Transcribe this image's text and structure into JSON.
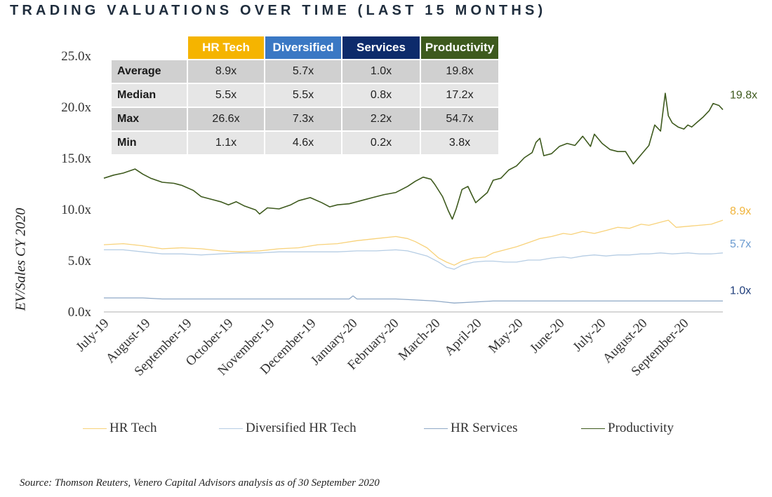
{
  "title": "TRADING VALUATIONS OVER TIME (LAST 15 MONTHS)",
  "source": "Source: Thomson Reuters, Venero Capital Advisors analysis as of 30 September 2020",
  "table": {
    "headers": [
      {
        "label": "HR Tech",
        "color": "#f5b400"
      },
      {
        "label": "Diversified",
        "color": "#3a78c4"
      },
      {
        "label": "Services",
        "color": "#0d2b6b"
      },
      {
        "label": "Productivity",
        "color": "#3e5a1e"
      }
    ],
    "rows": [
      {
        "label": "Average",
        "values": [
          "8.9x",
          "5.7x",
          "1.0x",
          "19.8x"
        ]
      },
      {
        "label": "Median",
        "values": [
          "5.5x",
          "5.5x",
          "0.8x",
          "17.2x"
        ]
      },
      {
        "label": "Max",
        "values": [
          "26.6x",
          "7.3x",
          "2.2x",
          "54.7x"
        ]
      },
      {
        "label": "Min",
        "values": [
          "1.1x",
          "4.6x",
          "0.2x",
          "3.8x"
        ]
      }
    ]
  },
  "legend": [
    {
      "label": "HR Tech",
      "color": "#f8d27a"
    },
    {
      "label": "Diversified HR Tech",
      "color": "#b6cde4"
    },
    {
      "label": "HR Services",
      "color": "#8fa9c7"
    },
    {
      "label": "Productivity",
      "color": "#3e5a1e"
    }
  ],
  "chart_data": {
    "type": "line",
    "title": "TRADING VALUATIONS OVER TIME (LAST 15 MONTHS)",
    "xlabel": "",
    "ylabel": "EV/Sales CY 2020",
    "ylim": [
      0,
      25
    ],
    "yticks": [
      "0.0x",
      "5.0x",
      "10.0x",
      "15.0x",
      "20.0x",
      "25.0x"
    ],
    "ytick_values": [
      0,
      5,
      10,
      15,
      20,
      25
    ],
    "x_start": 0,
    "x_end": 14,
    "categories": [
      "July-19",
      "August-19",
      "September-19",
      "October-19",
      "November-19",
      "December-19",
      "January-20",
      "February-20",
      "March-20",
      "April-20",
      "May-20",
      "June-20",
      "July-20",
      "August-20",
      "September-20"
    ],
    "series": [
      {
        "name": "Productivity",
        "color": "#3e5a1e",
        "end_label": "19.8x",
        "points": [
          [
            0,
            13.0
          ],
          [
            0.25,
            13.3
          ],
          [
            0.5,
            13.5
          ],
          [
            0.8,
            13.9
          ],
          [
            1.0,
            13.4
          ],
          [
            1.2,
            13.0
          ],
          [
            1.5,
            12.6
          ],
          [
            1.8,
            12.5
          ],
          [
            2.0,
            12.3
          ],
          [
            2.3,
            11.8
          ],
          [
            2.5,
            11.2
          ],
          [
            2.8,
            10.9
          ],
          [
            3.0,
            10.7
          ],
          [
            3.2,
            10.4
          ],
          [
            3.4,
            10.7
          ],
          [
            3.6,
            10.3
          ],
          [
            3.9,
            9.9
          ],
          [
            4.0,
            9.5
          ],
          [
            4.2,
            10.1
          ],
          [
            4.5,
            10.0
          ],
          [
            4.8,
            10.4
          ],
          [
            5.0,
            10.8
          ],
          [
            5.3,
            11.1
          ],
          [
            5.6,
            10.6
          ],
          [
            5.8,
            10.2
          ],
          [
            6.0,
            10.4
          ],
          [
            6.3,
            10.5
          ],
          [
            6.6,
            10.8
          ],
          [
            6.9,
            11.1
          ],
          [
            7.2,
            11.4
          ],
          [
            7.5,
            11.6
          ],
          [
            7.8,
            12.2
          ],
          [
            8.0,
            12.7
          ],
          [
            8.2,
            13.1
          ],
          [
            8.4,
            12.9
          ],
          [
            8.5,
            12.4
          ],
          [
            8.7,
            11.2
          ],
          [
            8.85,
            9.8
          ],
          [
            8.95,
            9.0
          ],
          [
            9.05,
            10.0
          ],
          [
            9.2,
            11.9
          ],
          [
            9.35,
            12.2
          ],
          [
            9.45,
            11.4
          ],
          [
            9.55,
            10.6
          ],
          [
            9.7,
            11.1
          ],
          [
            9.85,
            11.6
          ],
          [
            10.0,
            12.8
          ],
          [
            10.2,
            13.0
          ],
          [
            10.4,
            13.8
          ],
          [
            10.6,
            14.2
          ],
          [
            10.8,
            15.0
          ],
          [
            11.0,
            15.5
          ],
          [
            11.1,
            16.5
          ],
          [
            11.2,
            16.9
          ],
          [
            11.3,
            15.2
          ],
          [
            11.5,
            15.4
          ],
          [
            11.7,
            16.1
          ],
          [
            11.9,
            16.4
          ],
          [
            12.1,
            16.2
          ],
          [
            12.3,
            17.1
          ],
          [
            12.5,
            16.1
          ],
          [
            12.6,
            17.3
          ],
          [
            12.8,
            16.4
          ],
          [
            13.0,
            15.8
          ],
          [
            13.2,
            15.6
          ],
          [
            13.4,
            15.6
          ],
          [
            13.6,
            14.4
          ],
          [
            13.8,
            15.3
          ],
          [
            14.0,
            16.2
          ],
          [
            14.15,
            18.2
          ],
          [
            14.3,
            17.6
          ],
          [
            14.42,
            21.3
          ],
          [
            14.5,
            19.1
          ],
          [
            14.6,
            18.4
          ],
          [
            14.75,
            18.0
          ],
          [
            14.9,
            17.8
          ],
          [
            15.0,
            18.2
          ],
          [
            15.1,
            18.0
          ],
          [
            15.25,
            18.5
          ],
          [
            15.4,
            19.0
          ],
          [
            15.55,
            19.6
          ],
          [
            15.65,
            20.3
          ],
          [
            15.8,
            20.1
          ],
          [
            15.9,
            19.7
          ]
        ]
      },
      {
        "name": "HR Tech",
        "color": "#f8d27a",
        "end_label": "8.9x",
        "points": [
          [
            0,
            6.5
          ],
          [
            0.5,
            6.6
          ],
          [
            1.0,
            6.4
          ],
          [
            1.5,
            6.1
          ],
          [
            2.0,
            6.2
          ],
          [
            2.5,
            6.1
          ],
          [
            3.0,
            5.9
          ],
          [
            3.5,
            5.8
          ],
          [
            4.0,
            5.9
          ],
          [
            4.5,
            6.1
          ],
          [
            5.0,
            6.2
          ],
          [
            5.5,
            6.5
          ],
          [
            6.0,
            6.6
          ],
          [
            6.5,
            6.9
          ],
          [
            7.0,
            7.1
          ],
          [
            7.5,
            7.3
          ],
          [
            7.8,
            7.1
          ],
          [
            8.0,
            6.8
          ],
          [
            8.3,
            6.2
          ],
          [
            8.6,
            5.2
          ],
          [
            8.8,
            4.8
          ],
          [
            9.0,
            4.5
          ],
          [
            9.2,
            4.9
          ],
          [
            9.5,
            5.2
          ],
          [
            9.8,
            5.3
          ],
          [
            10.0,
            5.7
          ],
          [
            10.3,
            6.0
          ],
          [
            10.6,
            6.3
          ],
          [
            10.9,
            6.7
          ],
          [
            11.2,
            7.1
          ],
          [
            11.5,
            7.3
          ],
          [
            11.8,
            7.6
          ],
          [
            12.0,
            7.5
          ],
          [
            12.3,
            7.8
          ],
          [
            12.6,
            7.6
          ],
          [
            12.9,
            7.9
          ],
          [
            13.2,
            8.2
          ],
          [
            13.5,
            8.1
          ],
          [
            13.8,
            8.5
          ],
          [
            14.0,
            8.4
          ],
          [
            14.3,
            8.7
          ],
          [
            14.5,
            8.9
          ],
          [
            14.7,
            8.2
          ],
          [
            15.0,
            8.3
          ],
          [
            15.3,
            8.4
          ],
          [
            15.6,
            8.5
          ],
          [
            15.9,
            8.9
          ]
        ]
      },
      {
        "name": "Diversified HR Tech",
        "color": "#b6cde4",
        "end_label": "5.7x",
        "points": [
          [
            0,
            6.0
          ],
          [
            0.5,
            6.0
          ],
          [
            1.0,
            5.8
          ],
          [
            1.5,
            5.6
          ],
          [
            2.0,
            5.6
          ],
          [
            2.5,
            5.5
          ],
          [
            3.0,
            5.6
          ],
          [
            3.5,
            5.7
          ],
          [
            4.0,
            5.7
          ],
          [
            4.5,
            5.8
          ],
          [
            5.0,
            5.8
          ],
          [
            5.5,
            5.8
          ],
          [
            6.0,
            5.8
          ],
          [
            6.5,
            5.9
          ],
          [
            7.0,
            5.9
          ],
          [
            7.5,
            6.0
          ],
          [
            7.8,
            5.9
          ],
          [
            8.0,
            5.7
          ],
          [
            8.3,
            5.4
          ],
          [
            8.6,
            4.8
          ],
          [
            8.8,
            4.3
          ],
          [
            9.0,
            4.1
          ],
          [
            9.2,
            4.5
          ],
          [
            9.5,
            4.8
          ],
          [
            9.8,
            4.9
          ],
          [
            10.0,
            4.9
          ],
          [
            10.3,
            4.8
          ],
          [
            10.6,
            4.8
          ],
          [
            10.9,
            5.0
          ],
          [
            11.2,
            5.0
          ],
          [
            11.5,
            5.2
          ],
          [
            11.8,
            5.3
          ],
          [
            12.0,
            5.2
          ],
          [
            12.3,
            5.4
          ],
          [
            12.6,
            5.5
          ],
          [
            12.9,
            5.4
          ],
          [
            13.2,
            5.5
          ],
          [
            13.5,
            5.5
          ],
          [
            13.8,
            5.6
          ],
          [
            14.0,
            5.6
          ],
          [
            14.3,
            5.7
          ],
          [
            14.6,
            5.6
          ],
          [
            15.0,
            5.7
          ],
          [
            15.3,
            5.6
          ],
          [
            15.6,
            5.6
          ],
          [
            15.9,
            5.7
          ]
        ]
      },
      {
        "name": "HR Services",
        "color": "#8fa9c7",
        "end_label": "1.0x",
        "points": [
          [
            0,
            1.3
          ],
          [
            0.5,
            1.3
          ],
          [
            1.0,
            1.3
          ],
          [
            1.5,
            1.2
          ],
          [
            2.0,
            1.2
          ],
          [
            2.5,
            1.2
          ],
          [
            3.0,
            1.2
          ],
          [
            3.5,
            1.2
          ],
          [
            4.0,
            1.2
          ],
          [
            4.5,
            1.2
          ],
          [
            5.0,
            1.2
          ],
          [
            5.5,
            1.2
          ],
          [
            6.0,
            1.2
          ],
          [
            6.3,
            1.2
          ],
          [
            6.4,
            1.5
          ],
          [
            6.5,
            1.2
          ],
          [
            7.0,
            1.2
          ],
          [
            7.5,
            1.2
          ],
          [
            8.0,
            1.1
          ],
          [
            8.5,
            1.0
          ],
          [
            9.0,
            0.8
          ],
          [
            9.5,
            0.9
          ],
          [
            10.0,
            1.0
          ],
          [
            10.5,
            1.0
          ],
          [
            11.0,
            1.0
          ],
          [
            11.5,
            1.0
          ],
          [
            12.0,
            1.0
          ],
          [
            12.5,
            1.0
          ],
          [
            13.0,
            1.0
          ],
          [
            13.5,
            1.0
          ],
          [
            14.0,
            1.0
          ],
          [
            14.5,
            1.0
          ],
          [
            15.0,
            1.0
          ],
          [
            15.5,
            1.0
          ],
          [
            15.9,
            1.0
          ]
        ]
      }
    ]
  }
}
